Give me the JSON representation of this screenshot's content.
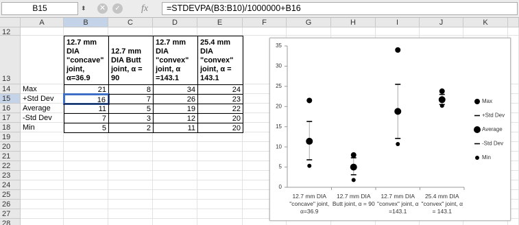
{
  "formula_bar": {
    "cell_ref": "B15",
    "fx": "fx",
    "formula": "=STDEVPA(B3:B10)/1000000+B16"
  },
  "columns": [
    "A",
    "B",
    "C",
    "D",
    "E",
    "F",
    "G",
    "H",
    "I",
    "J",
    "K"
  ],
  "rows": [
    "12",
    "13",
    "14",
    "15",
    "16",
    "17",
    "18",
    "19",
    "20",
    "21",
    "22",
    "23",
    "24",
    "25",
    "26",
    "27",
    "28"
  ],
  "table": {
    "headers": [
      "12.7 mm DIA \"concave\" joint, α=36.9",
      "12.7 mm DIA Butt joint, α = 90",
      "12.7 mm DIA \"convex\" joint, α =143.1",
      "25.4 mm DIA \"convex\" joint, α = 143.1"
    ],
    "rows": [
      {
        "label": "Max",
        "values": [
          21,
          8,
          34,
          24
        ]
      },
      {
        "label": "+Std Dev",
        "values": [
          16,
          7,
          26,
          23
        ]
      },
      {
        "label": "Average",
        "values": [
          11,
          5,
          19,
          22
        ]
      },
      {
        "label": "-Std Dev",
        "values": [
          7,
          3,
          12,
          20
        ]
      },
      {
        "label": "Min",
        "values": [
          5,
          2,
          11,
          20
        ]
      }
    ]
  },
  "chart_data": {
    "type": "scatter",
    "categories": [
      "12.7 mm DIA \"concave\" joint, α=36.9",
      "12.7 mm DIA Butt joint, α = 90",
      "12.7 mm DIA \"convex\" joint, α =143.1",
      "25.4 mm DIA \"convex\" joint, α = 143.1"
    ],
    "series": [
      {
        "name": "Max",
        "color": "#000000",
        "marker": "dot",
        "size": 4,
        "values": [
          21.5,
          8,
          34,
          23.8
        ]
      },
      {
        "name": "+Std Dev",
        "color": "#000000",
        "marker": "dash",
        "size": 4,
        "values": [
          16.3,
          7.3,
          25.5,
          23
        ]
      },
      {
        "name": "Average",
        "color": "#000000",
        "marker": "dot",
        "size": 5,
        "values": [
          11.4,
          5,
          18.8,
          21.7
        ]
      },
      {
        "name": "-Std Dev",
        "color": "#000000",
        "marker": "dash",
        "size": 4,
        "values": [
          6.8,
          3.1,
          12.1,
          20.5
        ]
      },
      {
        "name": "Min",
        "color": "#000000",
        "marker": "dot",
        "size": 3,
        "values": [
          5.3,
          1.8,
          10.7,
          20.2
        ]
      }
    ],
    "ylim": [
      0,
      35
    ],
    "yticks": [
      0,
      5,
      10,
      15,
      20,
      25,
      30,
      35
    ],
    "legend": "right"
  }
}
